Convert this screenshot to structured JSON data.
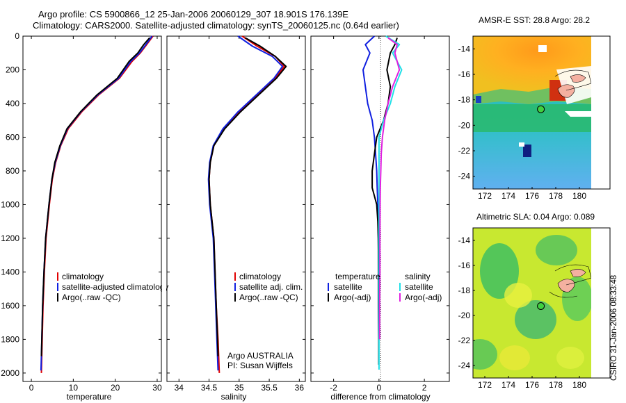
{
  "header": {
    "line1": "Argo profile: CS 5900866_12 25-Jan-2006 20060129_307 18.901S 176.139E",
    "line2": "Climatology: CARS2000. Satellite-adjusted climatology: synTS_20060125.nc (0.64d earlier)"
  },
  "colors": {
    "climatology": "#e00000",
    "satellite": "#1020e0",
    "argo": "#000000",
    "sal_satellite": "#20e0e8",
    "sal_argo": "#e020e0"
  },
  "chart_data": [
    {
      "type": "line",
      "id": "temperature",
      "xlabel": "temperature",
      "ylabel": "",
      "xlim": [
        -2,
        31
      ],
      "ylim": [
        2050,
        0
      ],
      "xticks": [
        0,
        10,
        20,
        30
      ],
      "yticks": [
        0,
        200,
        400,
        600,
        800,
        1000,
        1200,
        1400,
        1600,
        1800,
        2000
      ],
      "legend": {
        "position": "lower-right",
        "entries": [
          "climatology",
          "satellite-adjusted climatology",
          "Argo(..raw -QC)"
        ]
      },
      "series": [
        {
          "name": "climatology",
          "color": "#e00000",
          "x": [
            29.0,
            27.5,
            26.0,
            24.0,
            21.0,
            16.0,
            12.0,
            8.8,
            7.0,
            5.8,
            5.0,
            4.3,
            3.9,
            3.5,
            3.1,
            2.8,
            2.6,
            2.5,
            2.4
          ],
          "y": [
            0,
            50,
            100,
            150,
            250,
            350,
            450,
            550,
            650,
            750,
            850,
            1000,
            1100,
            1200,
            1400,
            1600,
            1800,
            1900,
            2000
          ]
        },
        {
          "name": "satellite-adjusted climatology",
          "color": "#1020e0",
          "x": [
            28.8,
            27.3,
            25.8,
            23.7,
            20.8,
            15.8,
            11.8,
            8.6,
            6.9,
            5.7,
            4.9,
            4.2,
            3.8,
            3.4,
            3.0,
            2.7,
            2.5,
            2.4,
            2.3
          ],
          "y": [
            0,
            50,
            100,
            150,
            250,
            350,
            450,
            550,
            650,
            750,
            850,
            1000,
            1100,
            1200,
            1400,
            1600,
            1800,
            1900,
            1985
          ]
        },
        {
          "name": "Argo(..raw -QC)",
          "color": "#000000",
          "x": [
            28.2,
            26.8,
            25.4,
            23.3,
            20.5,
            15.6,
            11.7,
            8.5,
            6.8,
            5.6,
            4.9,
            4.2,
            3.8,
            3.4,
            3.0,
            2.7,
            2.5,
            2.4
          ],
          "y": [
            10,
            50,
            100,
            150,
            250,
            350,
            450,
            550,
            650,
            750,
            850,
            1000,
            1100,
            1200,
            1400,
            1600,
            1800,
            1900
          ]
        }
      ]
    },
    {
      "type": "line",
      "id": "salinity",
      "xlabel": "salinity",
      "ylabel": "",
      "xlim": [
        33.8,
        36.1
      ],
      "ylim": [
        2050,
        0
      ],
      "xticks": [
        34,
        34.5,
        35,
        35.5,
        36
      ],
      "yticks": [
        0,
        200,
        400,
        600,
        800,
        1000,
        1200,
        1400,
        1600,
        1800,
        2000
      ],
      "legend": {
        "position": "lower-right",
        "entries": [
          "climatology",
          "satellite adj. clim.",
          "Argo(..raw -QC)"
        ]
      },
      "annotation": [
        "Argo AUSTRALIA",
        "PI: Susan Wijffels"
      ],
      "series": [
        {
          "name": "climatology",
          "color": "#e00000",
          "x": [
            35.05,
            35.3,
            35.6,
            35.75,
            35.6,
            35.3,
            35.0,
            34.75,
            34.58,
            34.52,
            34.5,
            34.52,
            34.55,
            34.58,
            34.6,
            34.62,
            34.65,
            34.66,
            34.67
          ],
          "y": [
            0,
            60,
            120,
            180,
            250,
            350,
            450,
            550,
            650,
            750,
            850,
            1000,
            1100,
            1200,
            1400,
            1600,
            1800,
            1900,
            2000
          ]
        },
        {
          "name": "satellite adj. clim.",
          "color": "#1020e0",
          "x": [
            34.98,
            35.22,
            35.55,
            35.72,
            35.58,
            35.28,
            34.98,
            34.73,
            34.57,
            34.51,
            34.49,
            34.51,
            34.54,
            34.57,
            34.59,
            34.61,
            34.63,
            34.64,
            34.65
          ],
          "y": [
            0,
            60,
            120,
            180,
            250,
            350,
            450,
            550,
            650,
            750,
            850,
            1000,
            1100,
            1200,
            1400,
            1600,
            1800,
            1900,
            1985
          ]
        },
        {
          "name": "Argo(..raw -QC)",
          "color": "#000000",
          "x": [
            35.1,
            35.35,
            35.6,
            35.78,
            35.62,
            35.32,
            35.02,
            34.76,
            34.58,
            34.52,
            34.5,
            34.52,
            34.55,
            34.58,
            34.6,
            34.62,
            34.64,
            34.65
          ],
          "y": [
            10,
            60,
            120,
            180,
            250,
            350,
            450,
            550,
            650,
            750,
            850,
            1000,
            1100,
            1200,
            1400,
            1600,
            1800,
            1900
          ]
        }
      ]
    },
    {
      "type": "line",
      "id": "difference",
      "xlabel": "difference from climatology",
      "ylabel": "",
      "xlim": [
        -3,
        3.1
      ],
      "ylim": [
        2050,
        0
      ],
      "xticks": [
        -2,
        0,
        2
      ],
      "yticks": [
        0,
        200,
        400,
        600,
        800,
        1000,
        1200,
        1400,
        1600,
        1800,
        2000
      ],
      "legend": {
        "position": "lower-center",
        "temperature_group": {
          "title": "temperature",
          "entries": [
            "satellite",
            "Argo(-adj)"
          ]
        },
        "salinity_group": {
          "title": "salinity",
          "entries": [
            "satellite",
            "Argo(-adj)"
          ]
        }
      },
      "series": [
        {
          "name": "temperature satellite",
          "color": "#1020e0",
          "x": [
            -0.2,
            -0.6,
            -0.4,
            -0.7,
            -0.6,
            -0.5,
            -0.3,
            -0.2,
            -0.15,
            -0.1,
            -0.08,
            -0.05,
            -0.04,
            -0.03,
            -0.02,
            -0.02,
            -0.01,
            -0.01
          ],
          "y": [
            0,
            50,
            100,
            200,
            300,
            400,
            500,
            600,
            700,
            800,
            900,
            1000,
            1100,
            1200,
            1400,
            1600,
            1800,
            1950
          ]
        },
        {
          "name": "temperature Argo(-adj)",
          "color": "#000000",
          "x": [
            0.8,
            0.7,
            0.5,
            0.35,
            0.5,
            0.4,
            0.2,
            -0.1,
            -0.2,
            -0.3,
            -0.3,
            -0.1,
            -0.05,
            -0.03,
            -0.02,
            -0.02,
            -0.01,
            -0.01
          ],
          "y": [
            10,
            50,
            100,
            200,
            300,
            400,
            500,
            600,
            700,
            800,
            900,
            1000,
            1100,
            1200,
            1400,
            1600,
            1800,
            1950
          ]
        },
        {
          "name": "salinity satellite",
          "color": "#20e0e8",
          "x": [
            0.3,
            0.9,
            0.6,
            1.0,
            0.7,
            0.5,
            0.2,
            0.0,
            0.0,
            0.0,
            0.0,
            0.0,
            0.0,
            0.0,
            0.0,
            0.0,
            0.0
          ],
          "y": [
            0,
            50,
            100,
            200,
            300,
            400,
            500,
            600,
            700,
            800,
            900,
            1000,
            1200,
            1400,
            1600,
            1800,
            1980
          ]
        },
        {
          "name": "salinity Argo(-adj)",
          "color": "#e020e0",
          "x": [
            0.4,
            0.8,
            0.7,
            0.9,
            0.6,
            0.4,
            0.25,
            0.15,
            0.1,
            0.08,
            0.06,
            0.05,
            0.04,
            0.04,
            0.03,
            0.03
          ],
          "y": [
            10,
            50,
            100,
            200,
            300,
            400,
            500,
            600,
            700,
            800,
            900,
            1000,
            1200,
            1400,
            1600,
            1800
          ]
        }
      ]
    },
    {
      "type": "heatmap",
      "id": "sst-map",
      "title": "AMSR-E SST: 28.8 Argo: 28.2",
      "xlim": [
        171,
        181
      ],
      "ylim": [
        -25,
        -13
      ],
      "xticks": [
        172,
        174,
        176,
        178,
        180
      ],
      "yticks": [
        -14,
        -16,
        -18,
        -20,
        -22,
        -24
      ],
      "marker": {
        "lon": 176.139,
        "lat": -18.901
      }
    },
    {
      "type": "heatmap",
      "id": "sla-map",
      "title": "Altimetric SLA: 0.04 Argo: 0.089",
      "xlim": [
        171,
        181
      ],
      "ylim": [
        -25,
        -13
      ],
      "xticks": [
        172,
        174,
        176,
        178,
        180
      ],
      "yticks": [
        -14,
        -16,
        -18,
        -20,
        -22,
        -24
      ],
      "marker": {
        "lon": 176.139,
        "lat": -18.901
      }
    }
  ],
  "side_label": "CSIRO 31-Jan-2006 08:33:48"
}
